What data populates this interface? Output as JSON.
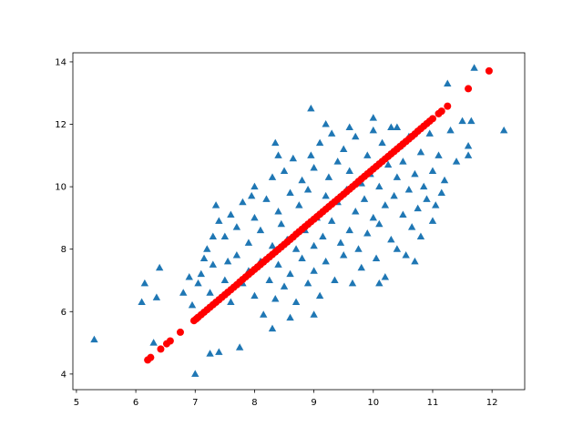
{
  "chart_data": {
    "type": "scatter",
    "xlim": [
      4.94,
      12.55
    ],
    "ylim": [
      3.5,
      14.29
    ],
    "xticks": [
      5,
      6,
      7,
      8,
      9,
      10,
      11,
      12
    ],
    "yticks": [
      4,
      6,
      8,
      10,
      12,
      14
    ],
    "series": [
      {
        "color": "#1f77b4",
        "marker": "triangle",
        "x": [
          5.3,
          6.1,
          6.15,
          6.4,
          6.35,
          6.3,
          7.0,
          7.25,
          7.4,
          7.75,
          8.3,
          8.95,
          11.7,
          12.2,
          11.25,
          11.15,
          11.65,
          11.6,
          10.4,
          8.35,
          7.95,
          7.1,
          7.2,
          7.3,
          7.25,
          7.4,
          7.35,
          7.5,
          7.5,
          7.6,
          7.6,
          7.7,
          7.7,
          7.8,
          7.8,
          7.9,
          7.9,
          8.0,
          8.0,
          8.0,
          8.1,
          8.1,
          8.15,
          8.2,
          8.25,
          8.3,
          8.3,
          8.35,
          8.4,
          8.4,
          8.45,
          8.5,
          8.5,
          8.55,
          8.6,
          8.6,
          8.65,
          8.7,
          8.7,
          8.75,
          8.8,
          8.8,
          8.85,
          8.9,
          8.9,
          8.95,
          9.0,
          9.0,
          9.0,
          9.05,
          9.1,
          9.1,
          9.15,
          9.2,
          9.2,
          9.25,
          9.3,
          9.3,
          9.35,
          9.4,
          9.4,
          9.45,
          9.5,
          9.5,
          9.55,
          9.6,
          9.6,
          9.65,
          9.7,
          9.7,
          9.75,
          9.8,
          9.8,
          9.85,
          9.9,
          9.9,
          9.95,
          10.0,
          10.0,
          10.05,
          10.1,
          10.1,
          10.15,
          10.2,
          10.2,
          10.25,
          10.3,
          10.3,
          10.35,
          10.4,
          10.4,
          10.45,
          10.5,
          10.5,
          10.55,
          10.6,
          10.6,
          10.65,
          10.7,
          10.75,
          10.8,
          10.8,
          10.85,
          10.9,
          10.95,
          11.0,
          11.0,
          11.05,
          11.1,
          11.2,
          11.3,
          11.4,
          11.5,
          11.6,
          7.3,
          7.55,
          7.15,
          7.05,
          6.9,
          6.95,
          6.8,
          9.6,
          9.2,
          10.0,
          8.4,
          10.7,
          10.1,
          9.0,
          8.6
        ],
        "values": [
          5.1,
          6.3,
          6.9,
          7.4,
          6.45,
          5.0,
          4.0,
          4.65,
          4.7,
          4.85,
          5.45,
          12.5,
          13.8,
          11.8,
          13.3,
          9.8,
          12.1,
          11.0,
          11.9,
          11.4,
          9.7,
          7.2,
          8.0,
          7.5,
          6.6,
          8.9,
          9.4,
          7.0,
          8.4,
          6.3,
          9.1,
          7.8,
          8.7,
          6.9,
          9.5,
          7.3,
          8.2,
          6.5,
          9.0,
          10.0,
          7.6,
          8.6,
          5.9,
          9.6,
          7.0,
          8.1,
          10.3,
          6.4,
          9.2,
          7.5,
          8.8,
          10.5,
          6.8,
          8.3,
          9.8,
          7.2,
          10.9,
          8.0,
          6.3,
          9.4,
          7.7,
          10.2,
          8.6,
          6.9,
          9.9,
          11.0,
          8.1,
          7.3,
          10.6,
          9.0,
          6.5,
          11.4,
          8.4,
          9.7,
          7.6,
          10.3,
          8.9,
          11.7,
          7.0,
          9.5,
          10.8,
          8.2,
          11.2,
          7.8,
          9.9,
          8.6,
          10.5,
          6.9,
          9.2,
          11.6,
          8.0,
          10.1,
          7.4,
          9.6,
          11.0,
          8.5,
          10.4,
          9.0,
          11.8,
          7.7,
          10.0,
          8.8,
          11.4,
          9.4,
          7.1,
          10.7,
          8.3,
          11.9,
          9.7,
          10.3,
          8.0,
          11.3,
          9.1,
          10.8,
          7.8,
          9.9,
          11.6,
          8.7,
          10.4,
          9.3,
          11.1,
          8.4,
          10.0,
          9.6,
          11.7,
          10.5,
          8.9,
          9.4,
          11.0,
          10.2,
          11.8,
          10.8,
          12.1,
          11.3,
          8.4,
          7.6,
          7.7,
          6.9,
          7.1,
          6.2,
          6.6,
          11.9,
          12.0,
          12.2,
          11.0,
          7.6,
          6.9,
          5.9,
          5.8
        ]
      },
      {
        "color": "#ff0000",
        "marker": "circle",
        "x": [
          6.2,
          6.25,
          6.42,
          6.52,
          6.58,
          6.75,
          6.98,
          7.02,
          7.1,
          7.2,
          7.3,
          7.4,
          7.5,
          7.6,
          7.7,
          7.8,
          7.9,
          8.0,
          8.1,
          8.2,
          8.3,
          8.4,
          8.5,
          8.6,
          8.7,
          8.8,
          8.9,
          9.0,
          9.1,
          9.2,
          9.3,
          9.4,
          9.5,
          9.6,
          9.7,
          9.8,
          9.9,
          10.0,
          10.1,
          10.2,
          10.3,
          10.4,
          10.5,
          10.6,
          10.7,
          10.8,
          10.9,
          11.0,
          11.1,
          11.15,
          11.25,
          11.6,
          11.95,
          7.05,
          7.15,
          7.25,
          7.35,
          7.45,
          7.55,
          7.65,
          7.75,
          7.85,
          7.95,
          8.05,
          8.15,
          8.25,
          8.35,
          8.45,
          8.55,
          8.65,
          8.75,
          8.85,
          8.95,
          9.05,
          9.15,
          9.25,
          9.35,
          9.45,
          9.55,
          9.65,
          9.75,
          9.85,
          9.95,
          10.05,
          10.15,
          10.25,
          10.35,
          10.45,
          10.55,
          10.65,
          10.75,
          10.85,
          10.95
        ],
        "values": [
          4.45,
          4.53,
          4.8,
          4.97,
          5.06,
          5.34,
          5.71,
          5.77,
          5.9,
          6.06,
          6.22,
          6.38,
          6.54,
          6.7,
          6.86,
          7.03,
          7.19,
          7.35,
          7.51,
          7.67,
          7.83,
          7.99,
          8.15,
          8.31,
          8.48,
          8.64,
          8.8,
          8.96,
          9.12,
          9.28,
          9.44,
          9.6,
          9.76,
          9.92,
          10.08,
          10.25,
          10.41,
          10.57,
          10.73,
          10.89,
          11.05,
          11.21,
          11.37,
          11.53,
          11.69,
          11.86,
          12.02,
          12.18,
          12.34,
          12.42,
          12.58,
          13.14,
          13.71,
          5.82,
          5.98,
          6.14,
          6.3,
          6.46,
          6.62,
          6.78,
          6.95,
          7.11,
          7.27,
          7.43,
          7.59,
          7.75,
          7.91,
          8.07,
          8.23,
          8.39,
          8.56,
          8.72,
          8.88,
          9.04,
          9.2,
          9.36,
          9.52,
          9.68,
          9.84,
          10.0,
          10.17,
          10.33,
          10.49,
          10.65,
          10.81,
          10.97,
          11.13,
          11.29,
          11.45,
          11.61,
          11.78,
          11.94,
          12.1
        ]
      }
    ]
  }
}
